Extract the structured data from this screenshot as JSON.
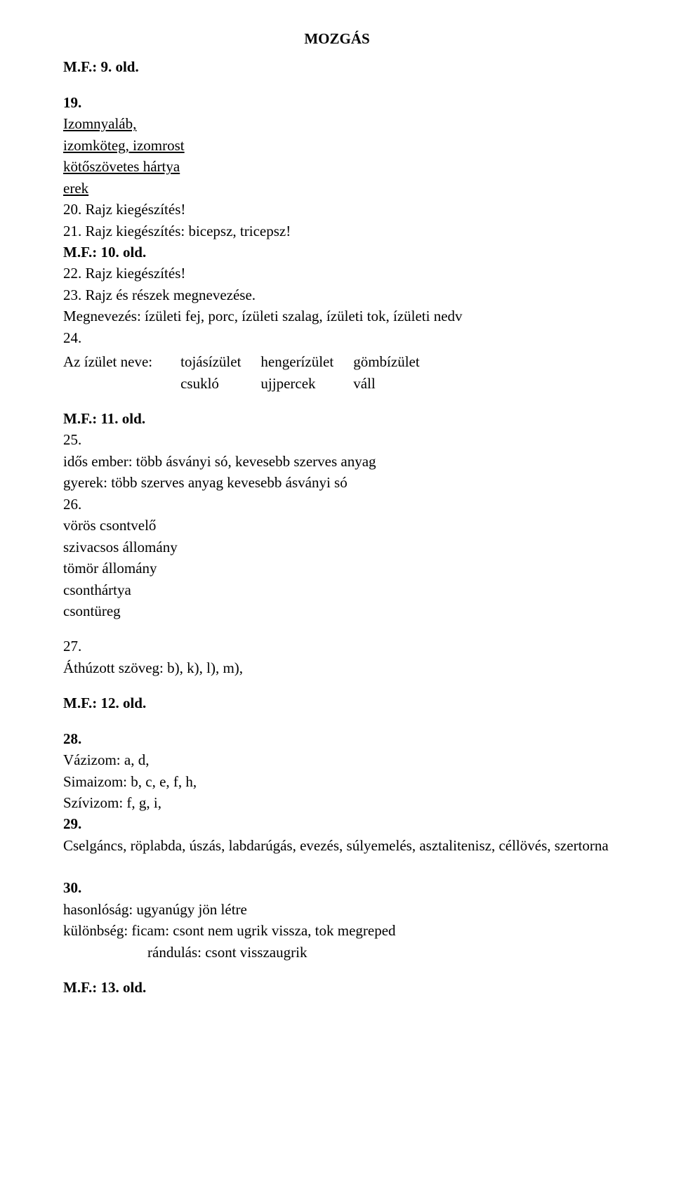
{
  "title": "MOZGÁS",
  "mf9": "M.F.: 9. old.",
  "n19": "19.",
  "line1a": "Izomnyaláb,",
  "line1b": "izomköteg, izomrost",
  "line1c": "kötőszövetes hártya",
  "line1d": "erek",
  "n20": "20. Rajz kiegészítés!",
  "n21": "21. Rajz kiegészítés: bicepsz, tricepsz!",
  "mf10": "M.F.: 10. old.",
  "n22": "22. Rajz kiegészítés!",
  "n23a": "23. Rajz és részek megnevezése.",
  "n23b": "Megnevezés: ízületi fej, porc, ízületi szalag, ízületi tok, ízületi nedv",
  "n24": "24.",
  "table": {
    "label": "Az ízület neve:",
    "r1c1": "tojásízület",
    "r1c2": "hengerízület",
    "r1c3": "gömbízület",
    "r2c1": "csukló",
    "r2c2": "ujjpercek",
    "r2c3": "váll"
  },
  "mf11": "M.F.: 11. old.",
  "n25": "25.",
  "n25a": "idős ember: több ásványi só, kevesebb szerves anyag",
  "n25b": "gyerek: több szerves anyag kevesebb ásványi só",
  "n26": "26.",
  "n26a": "vörös csontvelő",
  "n26b": "szivacsos állomány",
  "n26c": "tömör állomány",
  "n26d": "csonthártya",
  "n26e": "csontüreg",
  "n27": "27.",
  "n27a": "Áthúzott szöveg: b), k), l), m),",
  "mf12": "M.F.: 12. old.",
  "n28": "28.",
  "n28a": "Vázizom: a, d,",
  "n28b": "Simaizom: b, c, e, f, h,",
  "n28c": "Szívizom: f, g, i,",
  "n29": "29.",
  "n29a": "Cselgáncs, röplabda, úszás, labdarúgás, evezés, súlyemelés, asztalitenisz, céllövés, szertorna",
  "n30": "30.",
  "n30a": "hasonlóság: ugyanúgy jön létre",
  "n30b": "különbség: ficam: csont nem ugrik vissza, tok megreped",
  "n30c": "rándulás: csont visszaugrik",
  "mf13": "M.F.: 13. old."
}
